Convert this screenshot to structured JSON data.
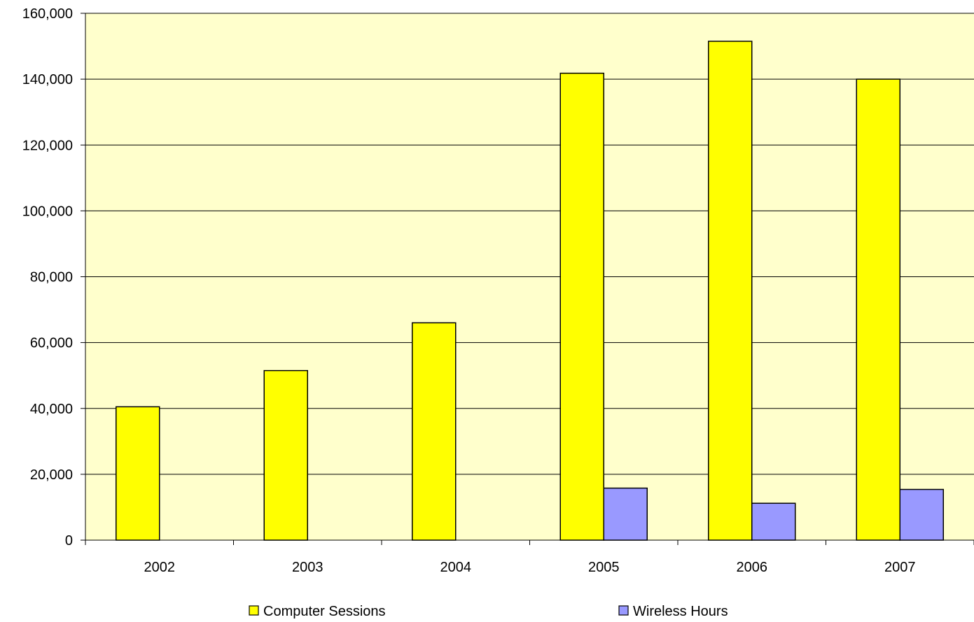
{
  "chart_data": {
    "type": "bar",
    "categories": [
      "2002",
      "2003",
      "2004",
      "2005",
      "2006",
      "2007"
    ],
    "series": [
      {
        "name": "Computer Sessions",
        "color": "#ffff00",
        "values": [
          40500,
          51500,
          66000,
          141800,
          151500,
          140000
        ]
      },
      {
        "name": "Wireless Hours",
        "color": "#9999ff",
        "values": [
          null,
          null,
          null,
          15800,
          11200,
          15400
        ]
      }
    ],
    "y_ticks": [
      "0",
      "20,000",
      "40,000",
      "60,000",
      "80,000",
      "100,000",
      "120,000",
      "140,000",
      "160,000"
    ],
    "ylim": [
      0,
      160000
    ],
    "y_step": 20000,
    "grid": true,
    "plot_background": "#ffffcc",
    "legend_position": "bottom",
    "title": "",
    "xlabel": "",
    "ylabel": ""
  }
}
